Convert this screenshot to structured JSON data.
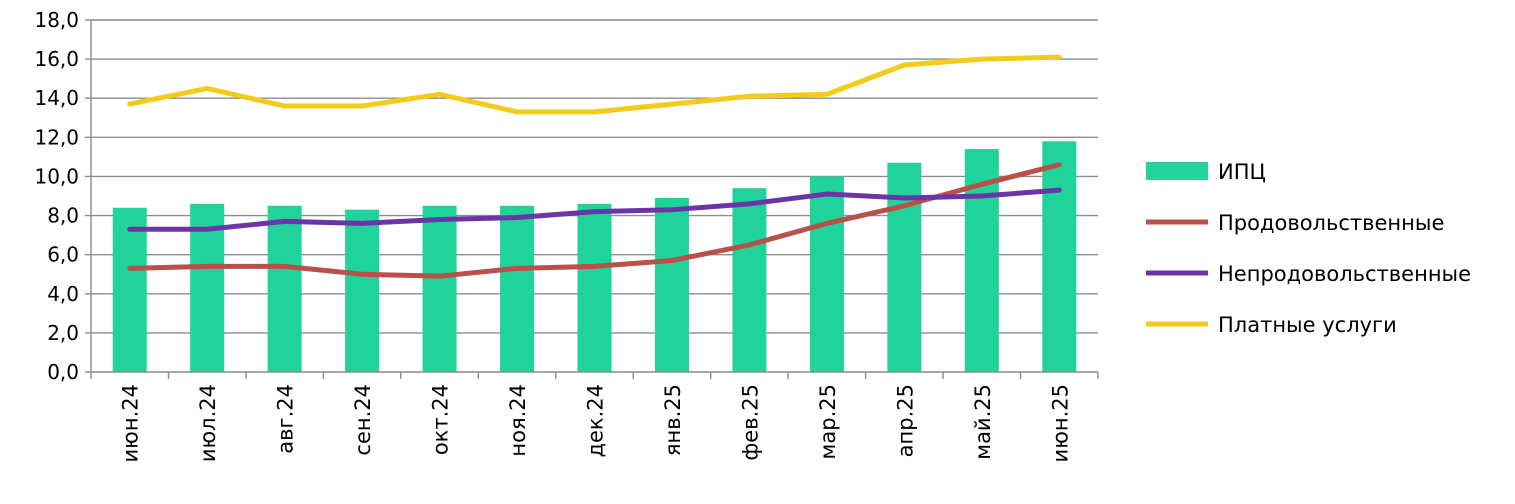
{
  "chart_data": {
    "type": "bar+line",
    "categories": [
      "июн.24",
      "июл.24",
      "авг.24",
      "сен.24",
      "окт.24",
      "ноя.24",
      "дек.24",
      "янв.25",
      "фев.25",
      "мар.25",
      "апр.25",
      "май.25",
      "июн.25"
    ],
    "ylim": [
      0,
      18
    ],
    "yticks": [
      "0,0",
      "2,0",
      "4,0",
      "6,0",
      "8,0",
      "10,0",
      "12,0",
      "14,0",
      "16,0",
      "18,0"
    ],
    "grid": true,
    "legend_position": "right",
    "series": [
      {
        "name": "ИПЦ",
        "kind": "bar",
        "color": "#1fd39a",
        "values": [
          8.4,
          8.6,
          8.5,
          8.3,
          8.5,
          8.5,
          8.6,
          8.9,
          9.4,
          10.0,
          10.7,
          11.4,
          11.8
        ]
      },
      {
        "name": "Продовольственные",
        "kind": "line",
        "color": "#b9504a",
        "values": [
          5.3,
          5.4,
          5.4,
          5.0,
          4.9,
          5.3,
          5.4,
          5.7,
          6.5,
          7.6,
          8.5,
          9.6,
          10.6
        ]
      },
      {
        "name": "Непродовольственные",
        "kind": "line",
        "color": "#6b35a8",
        "values": [
          7.3,
          7.3,
          7.7,
          7.6,
          7.8,
          7.9,
          8.2,
          8.3,
          8.6,
          9.1,
          8.9,
          9.0,
          9.3
        ]
      },
      {
        "name": "Платные услуги",
        "kind": "line",
        "color": "#f2cc1b",
        "values": [
          13.7,
          14.5,
          13.6,
          13.6,
          14.2,
          13.3,
          13.3,
          13.7,
          14.1,
          14.2,
          15.7,
          16.0,
          16.1
        ]
      }
    ]
  }
}
